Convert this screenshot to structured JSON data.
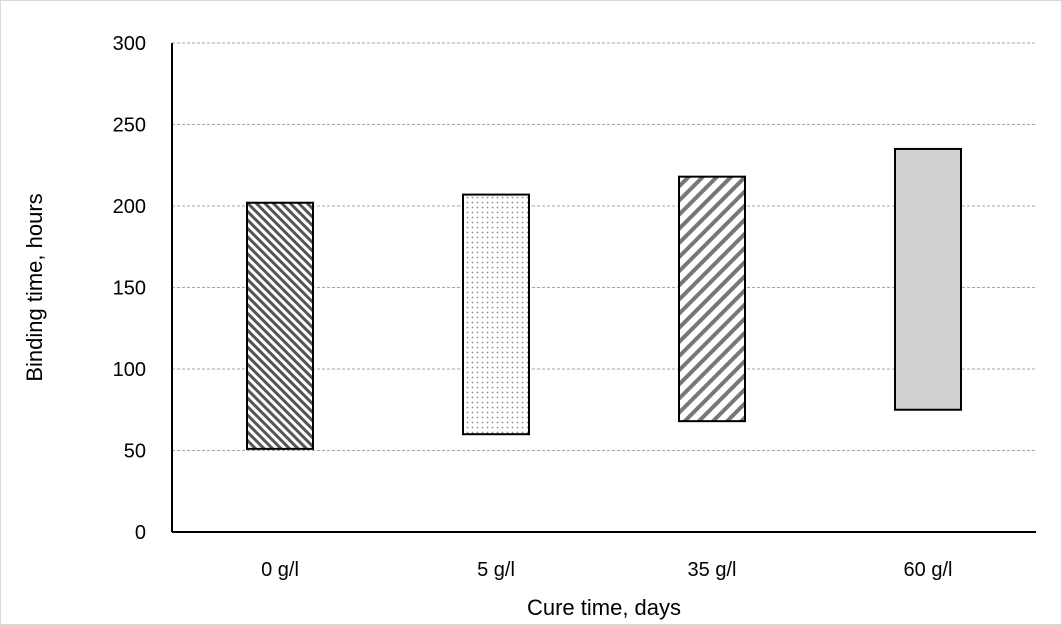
{
  "chart_data": {
    "type": "bar",
    "subtype": "floating-range",
    "title": "",
    "xlabel": "Cure time, days",
    "ylabel": "Binding time, hours",
    "categories": [
      "0 g/l",
      "5 g/l",
      "35 g/l",
      "60 g/l"
    ],
    "series": [
      {
        "ranges": [
          [
            51,
            202
          ],
          [
            60,
            207
          ],
          [
            68,
            218
          ],
          [
            75,
            235
          ]
        ]
      }
    ],
    "ylim": [
      0,
      300
    ],
    "yticks": [
      0,
      50,
      100,
      150,
      200,
      250,
      300
    ],
    "ytick_labels": [
      "0",
      "50",
      "100",
      "150",
      "200",
      "250",
      "300"
    ],
    "grid": "horizontal-dashed",
    "fills": [
      "dense-diagonal-hatch",
      "dotted",
      "diagonal-stripes",
      "solid-grey"
    ],
    "colors": {
      "hatch": "#555555",
      "dots": "#8c8c8c",
      "solid": "#d0d0d0",
      "grid": "#a6a6a6",
      "axis": "#000000"
    }
  }
}
